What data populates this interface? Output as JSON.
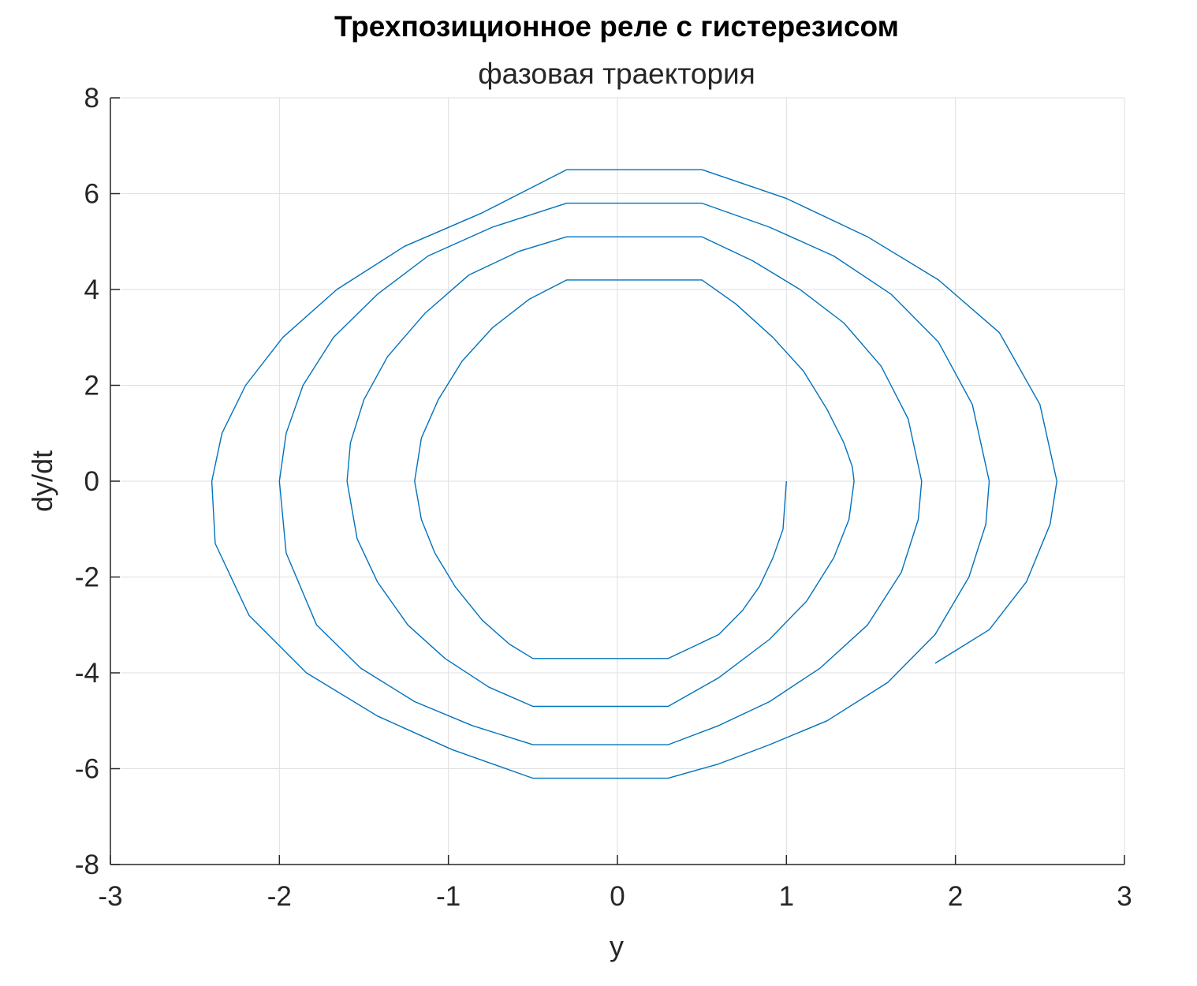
{
  "chart_data": {
    "type": "line",
    "title": "Трехпозиционное реле с гистерезисом",
    "subtitle": "фазовая траектория",
    "xlabel": "y",
    "ylabel": "dy/dt",
    "xlim": [
      -3,
      3
    ],
    "ylim": [
      -8,
      8
    ],
    "xticks": [
      -3,
      -2,
      -1,
      0,
      1,
      2,
      3
    ],
    "yticks": [
      -8,
      -6,
      -4,
      -2,
      0,
      2,
      4,
      6,
      8
    ],
    "grid": true,
    "legend": "none",
    "series_color": "#0072BD",
    "series": [
      {
        "x": [
          1.0,
          0.98,
          0.92,
          0.84,
          0.74,
          0.6,
          0.3,
          -0.5,
          -0.64,
          -0.8,
          -0.96,
          -1.08,
          -1.16,
          -1.2,
          -1.16,
          -1.06,
          -0.92,
          -0.74,
          -0.52,
          -0.3,
          0.5,
          0.7,
          0.92,
          1.1,
          1.24,
          1.34,
          1.39,
          1.4,
          1.37,
          1.28,
          1.12,
          0.9,
          0.6,
          0.3,
          -0.5,
          -0.76,
          -1.02,
          -1.24,
          -1.42,
          -1.54,
          -1.6,
          -1.58,
          -1.5,
          -1.36,
          -1.14,
          -0.88,
          -0.58,
          -0.3,
          0.5,
          0.8,
          1.08,
          1.34,
          1.56,
          1.72,
          1.8,
          1.78,
          1.68,
          1.48,
          1.2,
          0.9,
          0.6,
          0.3,
          -0.5,
          -0.86,
          -1.2,
          -1.52,
          -1.78,
          -1.96,
          -2.0,
          -1.96,
          -1.86,
          -1.68,
          -1.42,
          -1.12,
          -0.74,
          -0.3,
          0.5,
          0.9,
          1.28,
          1.62,
          1.9,
          2.1,
          2.2,
          2.18,
          2.08,
          1.88,
          1.6,
          1.24,
          0.9,
          0.6,
          0.3,
          -0.5,
          -0.98,
          -1.42,
          -1.84,
          -2.18,
          -2.38,
          -2.4,
          -2.34,
          -2.2,
          -1.98,
          -1.66,
          -1.26,
          -0.8,
          -0.3,
          0.5,
          1.0,
          1.48,
          1.9,
          2.26,
          2.5,
          2.6,
          2.56,
          2.42,
          2.2,
          1.88
        ],
        "y": [
          0.0,
          -1.0,
          -1.6,
          -2.2,
          -2.7,
          -3.2,
          -3.7,
          -3.7,
          -3.4,
          -2.9,
          -2.2,
          -1.5,
          -0.8,
          0.0,
          0.9,
          1.7,
          2.5,
          3.2,
          3.8,
          4.2,
          4.2,
          3.7,
          3.0,
          2.3,
          1.5,
          0.8,
          0.3,
          0.0,
          -0.8,
          -1.6,
          -2.5,
          -3.3,
          -4.1,
          -4.7,
          -4.7,
          -4.3,
          -3.7,
          -3.0,
          -2.1,
          -1.2,
          0.0,
          0.8,
          1.7,
          2.6,
          3.5,
          4.3,
          4.8,
          5.1,
          5.1,
          4.6,
          4.0,
          3.3,
          2.4,
          1.3,
          0.0,
          -0.8,
          -1.9,
          -3.0,
          -3.9,
          -4.6,
          -5.1,
          -5.5,
          -5.5,
          -5.1,
          -4.6,
          -3.9,
          -3.0,
          -1.5,
          0.0,
          1.0,
          2.0,
          3.0,
          3.9,
          4.7,
          5.3,
          5.8,
          5.8,
          5.3,
          4.7,
          3.9,
          2.9,
          1.6,
          0.0,
          -0.9,
          -2.0,
          -3.2,
          -4.2,
          -5.0,
          -5.5,
          -5.9,
          -6.2,
          -6.2,
          -5.6,
          -4.9,
          -4.0,
          -2.8,
          -1.3,
          0.0,
          1.0,
          2.0,
          3.0,
          4.0,
          4.9,
          5.6,
          6.5,
          6.5,
          5.9,
          5.1,
          4.2,
          3.1,
          1.6,
          0.0,
          -0.9,
          -2.1,
          -3.1,
          -3.8
        ]
      }
    ]
  }
}
